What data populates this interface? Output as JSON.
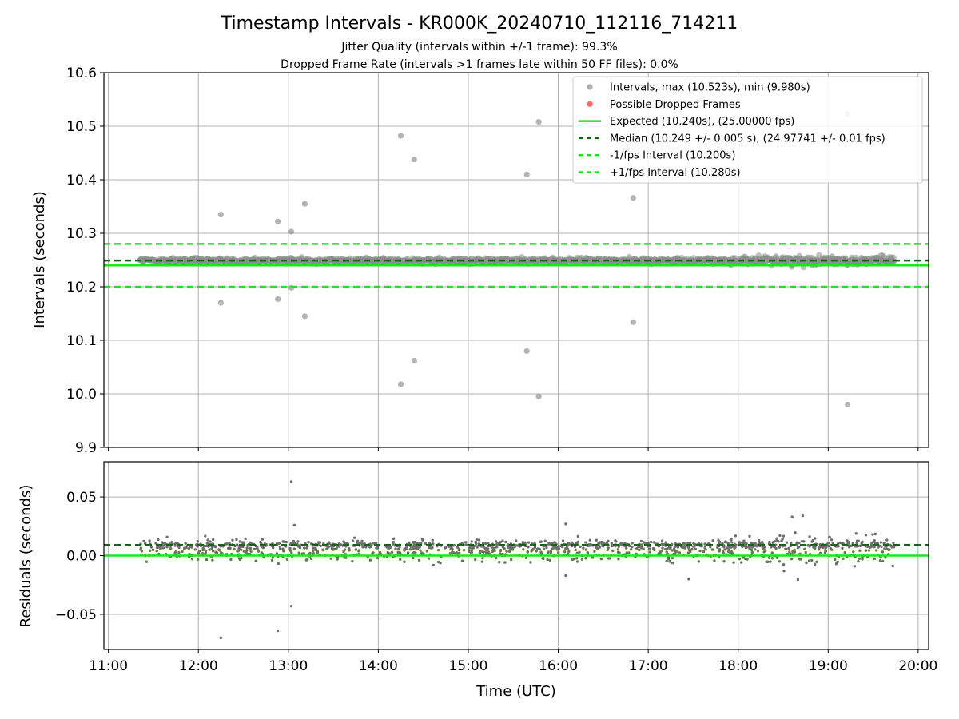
{
  "title": "Timestamp Intervals - KR000K_20240710_112116_714211",
  "subtitle_lines": [
    "Jitter Quality (intervals within +/-1 frame): 99.3%",
    "Dropped Frame Rate (intervals >1 frames late within 50 FF files): 0.0%"
  ],
  "colors": {
    "points": "#8c8c8c",
    "dropped": "#ff6666",
    "expected": "#22e022",
    "median": "#116611",
    "interval": "#22e022",
    "grid": "#b0b0b0"
  },
  "chart_data": [
    {
      "type": "scatter",
      "panel": "intervals",
      "ylabel": "Intervals (seconds)",
      "xlabel": "",
      "xlim": [
        "10:57",
        "20:07"
      ],
      "ylim": [
        9.9,
        10.6
      ],
      "yticks": [
        "9.9",
        "10.0",
        "10.1",
        "10.2",
        "10.3",
        "10.4",
        "10.5",
        "10.6"
      ],
      "grid": true,
      "legend_position": "top-right",
      "legend": [
        "Intervals, max (10.523s), min (9.980s)",
        "Possible Dropped Frames",
        "Expected (10.240s), (25.00000 fps)",
        "Median (10.249 +/- 0.005 s), (24.97741 +/- 0.01 fps)",
        "-1/fps Interval (10.200s)",
        "+1/fps Interval (10.280s)"
      ],
      "reference_lines": {
        "expected": 10.24,
        "median": 10.249,
        "minus_one_fps": 10.2,
        "plus_one_fps": 10.28
      },
      "time_range": [
        "11:21",
        "19:44"
      ],
      "band_center": 10.249,
      "band_spread": 0.006,
      "series": [
        {
          "name": "Intervals, max (10.523s), min (9.980s)",
          "points": [
            {
              "x": "12:15",
              "y": 10.335
            },
            {
              "x": "12:15",
              "y": 10.17
            },
            {
              "x": "12:53",
              "y": 10.322
            },
            {
              "x": "12:53",
              "y": 10.177
            },
            {
              "x": "13:02",
              "y": 10.303
            },
            {
              "x": "13:02",
              "y": 10.198
            },
            {
              "x": "13:11",
              "y": 10.355
            },
            {
              "x": "13:11",
              "y": 10.145
            },
            {
              "x": "14:15",
              "y": 10.482
            },
            {
              "x": "14:15",
              "y": 10.018
            },
            {
              "x": "14:24",
              "y": 10.438
            },
            {
              "x": "14:24",
              "y": 10.062
            },
            {
              "x": "15:39",
              "y": 10.41
            },
            {
              "x": "15:39",
              "y": 10.08
            },
            {
              "x": "15:47",
              "y": 10.508
            },
            {
              "x": "15:47",
              "y": 9.995
            },
            {
              "x": "16:50",
              "y": 10.366
            },
            {
              "x": "16:50",
              "y": 10.134
            },
            {
              "x": "19:13",
              "y": 10.523
            },
            {
              "x": "19:13",
              "y": 9.98
            }
          ]
        },
        {
          "name": "Possible Dropped Frames",
          "points": []
        }
      ]
    },
    {
      "type": "scatter",
      "panel": "residuals",
      "ylabel": "Residuals (seconds)",
      "xlabel": "Time (UTC)",
      "xlim": [
        "10:57",
        "20:07"
      ],
      "ylim": [
        -0.08,
        0.08
      ],
      "yticks": [
        "−0.05",
        "0.00",
        "0.05"
      ],
      "xticks": [
        "11:00",
        "12:00",
        "13:00",
        "14:00",
        "15:00",
        "16:00",
        "17:00",
        "18:00",
        "19:00",
        "20:00"
      ],
      "grid": true,
      "reference_lines": {
        "zero": 0.0,
        "median_offset": 0.009
      },
      "time_range": [
        "11:21",
        "19:44"
      ],
      "series": [
        {
          "points": [
            {
              "x": "13:02",
              "y": 0.063
            },
            {
              "x": "13:04",
              "y": 0.026
            },
            {
              "x": "13:02",
              "y": -0.043
            },
            {
              "x": "12:53",
              "y": -0.064
            },
            {
              "x": "12:15",
              "y": -0.07
            },
            {
              "x": "16:05",
              "y": 0.027
            },
            {
              "x": "16:05",
              "y": -0.017
            },
            {
              "x": "17:27",
              "y": -0.02
            },
            {
              "x": "18:43",
              "y": 0.034
            },
            {
              "x": "18:36",
              "y": 0.033
            }
          ]
        }
      ]
    }
  ]
}
